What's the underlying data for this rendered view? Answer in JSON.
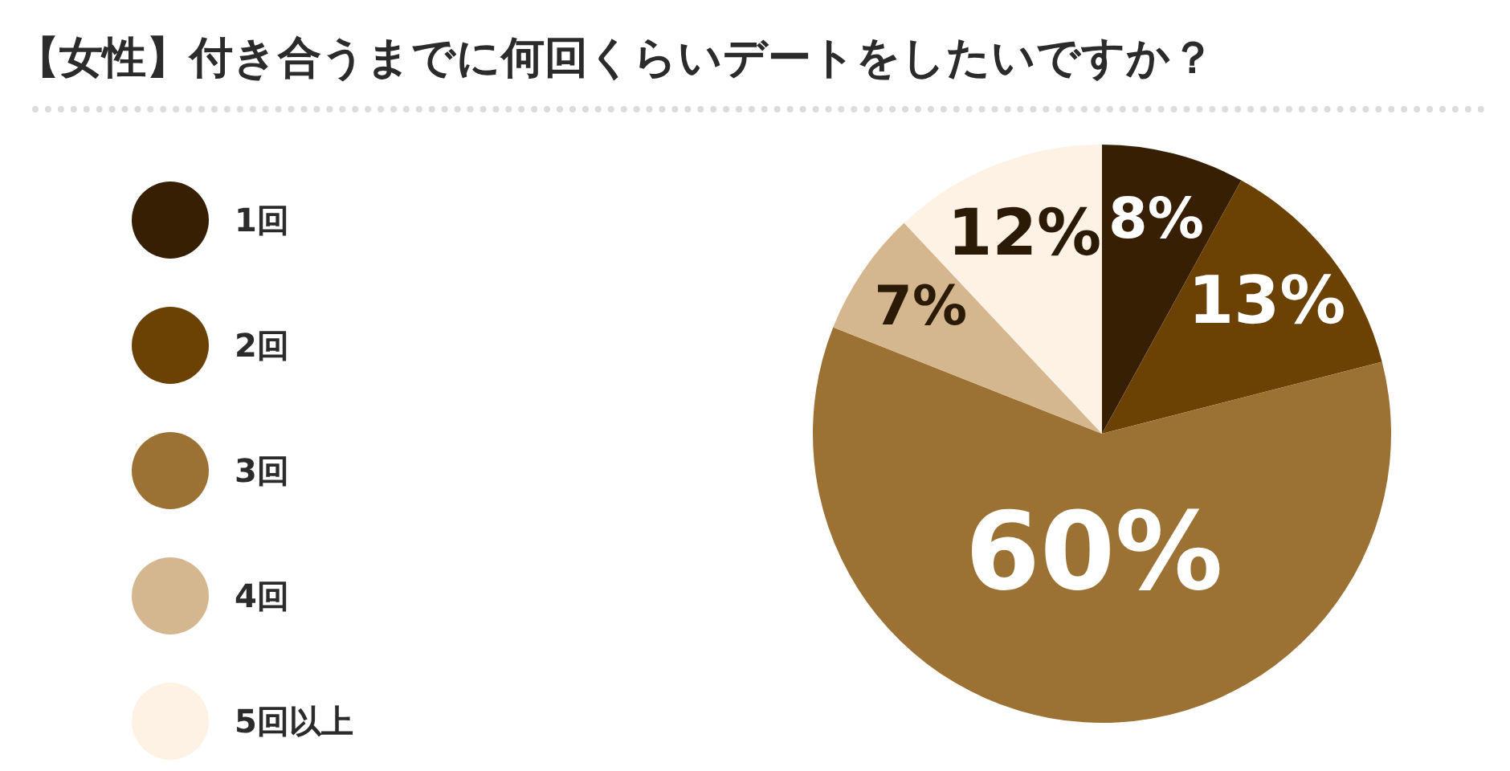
{
  "chart_data": {
    "type": "pie",
    "title": "【女性】付き合うまでに何回くらいデートをしたいですか？",
    "categories": [
      "1回",
      "2回",
      "3回",
      "4回",
      "5回以上"
    ],
    "values": [
      8,
      13,
      60,
      7,
      12
    ],
    "value_labels": [
      "8%",
      "13%",
      "60%",
      "7%",
      "12%"
    ],
    "colors": [
      "#361f02",
      "#6b4104",
      "#9c7234",
      "#d4b78e",
      "#fdf2e3"
    ],
    "legend": "left"
  }
}
